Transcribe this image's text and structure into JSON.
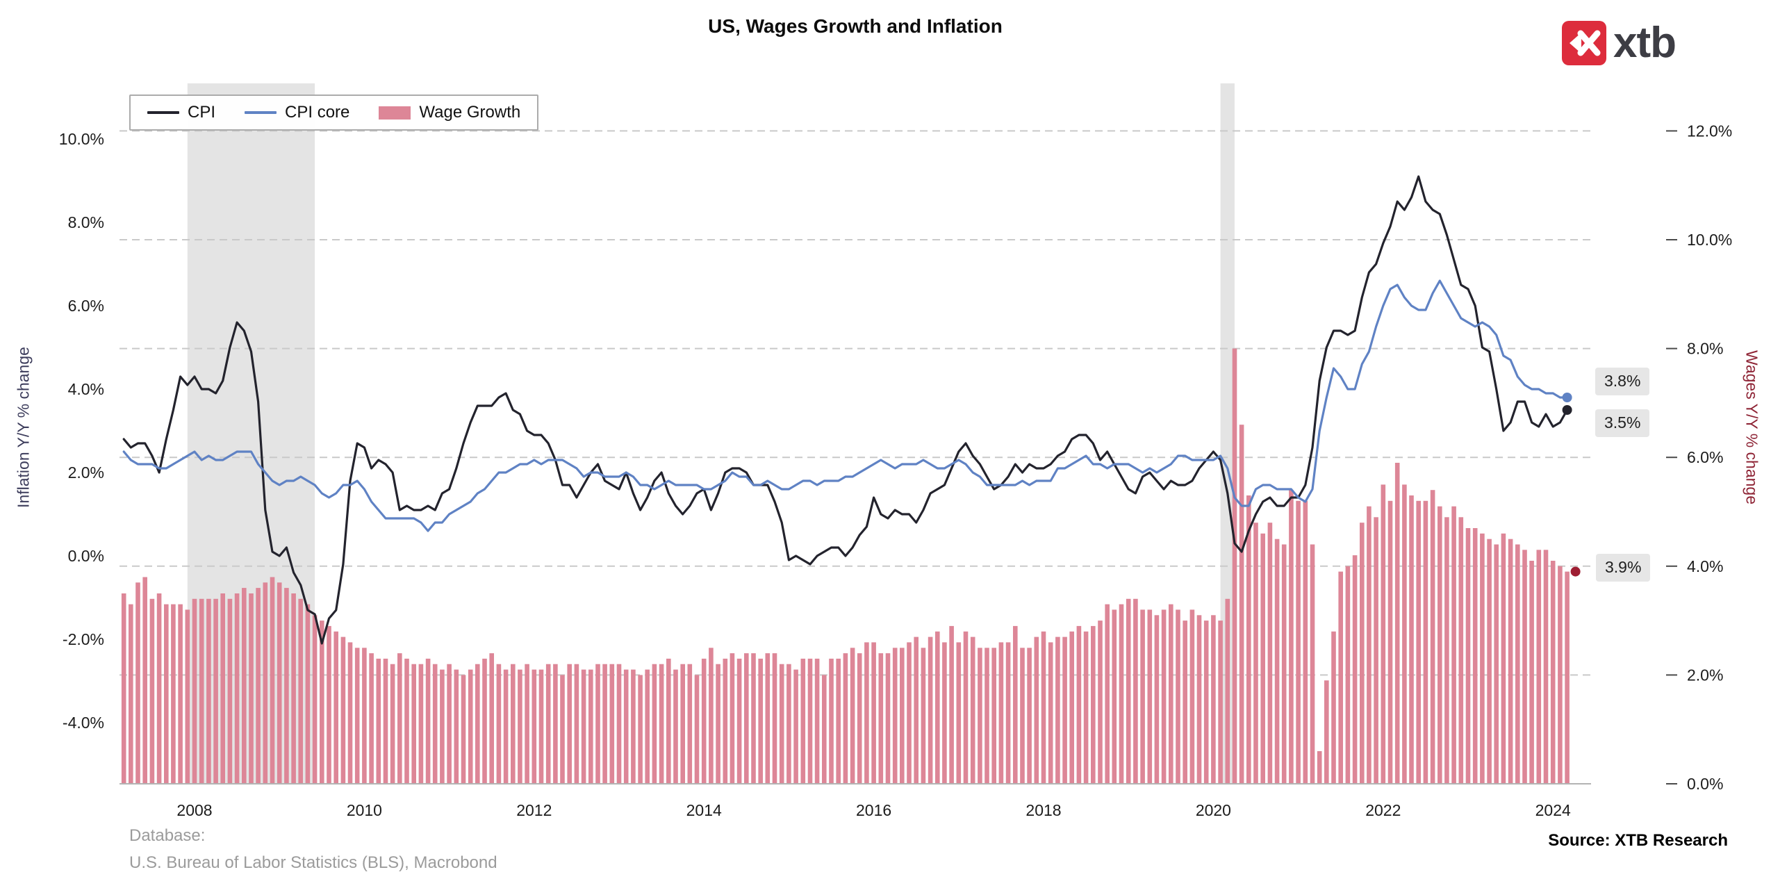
{
  "title": "US, Wages Growth and Inflation",
  "logo": {
    "text": "xtb",
    "brand_red": "#dd2c3c"
  },
  "footer": {
    "database_label": "Database:",
    "database_value": "U.S. Bureau of Labor Statistics (BLS), Macrobond",
    "source": "Source: XTB Research"
  },
  "chart_data": {
    "type": "mixed",
    "title": "US, Wages Growth and Inflation",
    "frequency": "monthly",
    "x_start": "2007-03",
    "x_end": "2024-03",
    "x_tick_years": [
      2008,
      2010,
      2012,
      2014,
      2016,
      2018,
      2020,
      2022,
      2024
    ],
    "grid": "horizontal-dashed",
    "legend_position": "top-left",
    "left_axis": {
      "label": "Inflation Y/Y % change",
      "tick_values": [
        10,
        8,
        6,
        4,
        2,
        0,
        -2,
        -4
      ],
      "tick_suffix": "%",
      "range": [
        -5.5,
        11.3
      ],
      "title_color": "#3d3d5c"
    },
    "right_axis": {
      "label": "Wages Y/Y % change",
      "tick_values": [
        12,
        10,
        8,
        6,
        4,
        2,
        0
      ],
      "tick_suffix": "%",
      "range": [
        0,
        12.9
      ],
      "title_color": "#8e2435"
    },
    "recession_bands": [
      {
        "start": "2007-12",
        "end": "2009-06"
      },
      {
        "start": "2020-02",
        "end": "2020-04"
      }
    ],
    "series": [
      {
        "name": "CPI",
        "type": "line",
        "axis": "left",
        "color": "#23232d",
        "values": [
          2.8,
          2.6,
          2.7,
          2.7,
          2.4,
          2.0,
          2.8,
          3.5,
          4.3,
          4.1,
          4.3,
          4.0,
          4.0,
          3.9,
          4.2,
          5.0,
          5.6,
          5.4,
          4.9,
          3.7,
          1.1,
          0.1,
          0.0,
          0.2,
          -0.4,
          -0.7,
          -1.3,
          -1.4,
          -2.1,
          -1.5,
          -1.3,
          -0.2,
          1.8,
          2.7,
          2.6,
          2.1,
          2.3,
          2.2,
          2.0,
          1.1,
          1.2,
          1.1,
          1.1,
          1.2,
          1.1,
          1.5,
          1.6,
          2.1,
          2.7,
          3.2,
          3.6,
          3.6,
          3.6,
          3.8,
          3.9,
          3.5,
          3.4,
          3.0,
          2.9,
          2.9,
          2.7,
          2.3,
          1.7,
          1.7,
          1.4,
          1.7,
          2.0,
          2.2,
          1.8,
          1.7,
          1.6,
          2.0,
          1.5,
          1.1,
          1.4,
          1.8,
          2.0,
          1.5,
          1.2,
          1.0,
          1.2,
          1.5,
          1.6,
          1.1,
          1.5,
          2.0,
          2.1,
          2.1,
          2.0,
          1.7,
          1.7,
          1.7,
          1.3,
          0.8,
          -0.1,
          0.0,
          -0.1,
          -0.2,
          0.0,
          0.1,
          0.2,
          0.2,
          0.0,
          0.2,
          0.5,
          0.7,
          1.4,
          1.0,
          0.9,
          1.1,
          1.0,
          1.0,
          0.8,
          1.1,
          1.5,
          1.6,
          1.7,
          2.1,
          2.5,
          2.7,
          2.4,
          2.2,
          1.9,
          1.6,
          1.7,
          1.9,
          2.2,
          2.0,
          2.2,
          2.1,
          2.1,
          2.2,
          2.4,
          2.5,
          2.8,
          2.9,
          2.9,
          2.7,
          2.3,
          2.5,
          2.2,
          1.9,
          1.6,
          1.5,
          1.9,
          2.0,
          1.8,
          1.6,
          1.8,
          1.7,
          1.7,
          1.8,
          2.1,
          2.3,
          2.5,
          2.3,
          1.5,
          0.3,
          0.1,
          0.6,
          1.0,
          1.3,
          1.4,
          1.2,
          1.2,
          1.4,
          1.4,
          1.7,
          2.6,
          4.2,
          5.0,
          5.4,
          5.4,
          5.3,
          5.4,
          6.2,
          6.8,
          7.0,
          7.5,
          7.9,
          8.5,
          8.3,
          8.6,
          9.1,
          8.5,
          8.3,
          8.2,
          7.7,
          7.1,
          6.5,
          6.4,
          6.0,
          5.0,
          4.9,
          4.0,
          3.0,
          3.2,
          3.7,
          3.7,
          3.2,
          3.1,
          3.4,
          3.1,
          3.2,
          3.5
        ]
      },
      {
        "name": "CPI core",
        "type": "line",
        "axis": "left",
        "color": "#5f82c4",
        "values": [
          2.5,
          2.3,
          2.2,
          2.2,
          2.2,
          2.1,
          2.1,
          2.2,
          2.3,
          2.4,
          2.5,
          2.3,
          2.4,
          2.3,
          2.3,
          2.4,
          2.5,
          2.5,
          2.5,
          2.2,
          2.0,
          1.8,
          1.7,
          1.8,
          1.8,
          1.9,
          1.8,
          1.7,
          1.5,
          1.4,
          1.5,
          1.7,
          1.7,
          1.8,
          1.6,
          1.3,
          1.1,
          0.9,
          0.9,
          0.9,
          0.9,
          0.9,
          0.8,
          0.6,
          0.8,
          0.8,
          1.0,
          1.1,
          1.2,
          1.3,
          1.5,
          1.6,
          1.8,
          2.0,
          2.0,
          2.1,
          2.2,
          2.2,
          2.3,
          2.2,
          2.3,
          2.3,
          2.3,
          2.2,
          2.1,
          1.9,
          2.0,
          2.0,
          1.9,
          1.9,
          1.9,
          2.0,
          1.9,
          1.7,
          1.7,
          1.6,
          1.7,
          1.8,
          1.7,
          1.7,
          1.7,
          1.7,
          1.6,
          1.6,
          1.7,
          1.8,
          2.0,
          1.9,
          1.9,
          1.7,
          1.7,
          1.8,
          1.7,
          1.6,
          1.6,
          1.7,
          1.8,
          1.8,
          1.7,
          1.8,
          1.8,
          1.8,
          1.9,
          1.9,
          2.0,
          2.1,
          2.2,
          2.3,
          2.2,
          2.1,
          2.2,
          2.2,
          2.2,
          2.3,
          2.2,
          2.1,
          2.1,
          2.2,
          2.3,
          2.2,
          2.0,
          1.9,
          1.7,
          1.7,
          1.7,
          1.7,
          1.7,
          1.8,
          1.7,
          1.8,
          1.8,
          1.8,
          2.1,
          2.1,
          2.2,
          2.3,
          2.4,
          2.2,
          2.2,
          2.1,
          2.2,
          2.2,
          2.2,
          2.1,
          2.0,
          2.1,
          2.0,
          2.1,
          2.2,
          2.4,
          2.4,
          2.3,
          2.3,
          2.3,
          2.3,
          2.4,
          2.1,
          1.4,
          1.2,
          1.2,
          1.6,
          1.7,
          1.7,
          1.6,
          1.6,
          1.6,
          1.4,
          1.3,
          1.6,
          3.0,
          3.8,
          4.5,
          4.3,
          4.0,
          4.0,
          4.6,
          4.9,
          5.5,
          6.0,
          6.4,
          6.5,
          6.2,
          6.0,
          5.9,
          5.9,
          6.3,
          6.6,
          6.3,
          6.0,
          5.7,
          5.6,
          5.5,
          5.6,
          5.5,
          5.3,
          4.8,
          4.7,
          4.3,
          4.1,
          4.0,
          4.0,
          3.9,
          3.9,
          3.8,
          3.8
        ]
      },
      {
        "name": "Wage Growth",
        "type": "bar",
        "axis": "right",
        "color": "#dd8697",
        "dot_color": "#9e1e33",
        "values": [
          3.5,
          3.3,
          3.7,
          3.8,
          3.4,
          3.5,
          3.3,
          3.3,
          3.3,
          3.2,
          3.4,
          3.4,
          3.4,
          3.4,
          3.5,
          3.4,
          3.5,
          3.6,
          3.5,
          3.6,
          3.7,
          3.8,
          3.7,
          3.6,
          3.5,
          3.4,
          3.3,
          3.1,
          3.0,
          2.9,
          2.8,
          2.7,
          2.6,
          2.5,
          2.5,
          2.4,
          2.3,
          2.3,
          2.2,
          2.4,
          2.3,
          2.2,
          2.2,
          2.3,
          2.2,
          2.1,
          2.2,
          2.1,
          2.0,
          2.1,
          2.2,
          2.3,
          2.4,
          2.2,
          2.1,
          2.2,
          2.1,
          2.2,
          2.1,
          2.1,
          2.2,
          2.2,
          2.0,
          2.2,
          2.2,
          2.1,
          2.1,
          2.2,
          2.2,
          2.2,
          2.2,
          2.1,
          2.1,
          2.0,
          2.1,
          2.2,
          2.2,
          2.3,
          2.1,
          2.2,
          2.2,
          2.0,
          2.3,
          2.5,
          2.2,
          2.3,
          2.4,
          2.3,
          2.4,
          2.4,
          2.3,
          2.4,
          2.4,
          2.2,
          2.2,
          2.1,
          2.3,
          2.3,
          2.3,
          2.0,
          2.3,
          2.3,
          2.4,
          2.5,
          2.4,
          2.6,
          2.6,
          2.4,
          2.4,
          2.5,
          2.5,
          2.6,
          2.7,
          2.5,
          2.7,
          2.8,
          2.6,
          2.9,
          2.6,
          2.8,
          2.7,
          2.5,
          2.5,
          2.5,
          2.6,
          2.6,
          2.9,
          2.5,
          2.5,
          2.7,
          2.8,
          2.6,
          2.7,
          2.7,
          2.8,
          2.9,
          2.8,
          2.9,
          3.0,
          3.3,
          3.2,
          3.3,
          3.4,
          3.4,
          3.2,
          3.2,
          3.1,
          3.2,
          3.3,
          3.2,
          3.0,
          3.2,
          3.1,
          3.0,
          3.1,
          3.0,
          3.4,
          8.0,
          6.6,
          5.3,
          4.8,
          4.6,
          4.8,
          4.5,
          4.4,
          5.4,
          5.2,
          5.2,
          4.4,
          0.6,
          1.9,
          2.8,
          3.9,
          4.0,
          4.2,
          4.8,
          5.1,
          4.9,
          5.5,
          5.2,
          5.9,
          5.5,
          5.3,
          5.2,
          5.2,
          5.4,
          5.1,
          4.9,
          5.1,
          4.9,
          4.7,
          4.7,
          4.6,
          4.5,
          4.4,
          4.6,
          4.5,
          4.4,
          4.3,
          4.1,
          4.3,
          4.3,
          4.1,
          4.0,
          3.9
        ]
      }
    ],
    "end_labels": [
      {
        "series": "CPI core",
        "text": "3.8%"
      },
      {
        "series": "CPI",
        "text": "3.5%"
      },
      {
        "series": "Wage Growth",
        "text": "3.9%"
      }
    ]
  }
}
